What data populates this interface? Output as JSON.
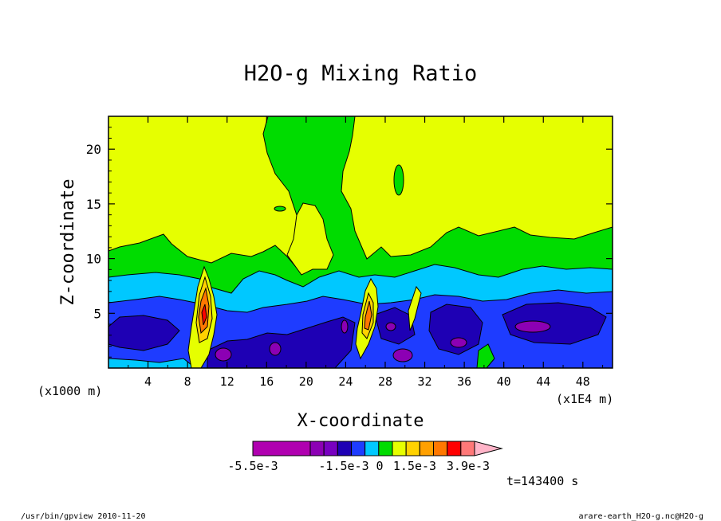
{
  "chart_data": {
    "type": "heatmap",
    "title": "H2O-g Mixing Ratio",
    "xlabel": "X-coordinate",
    "ylabel": "Z-coordinate",
    "xunit": "(x1000 m)",
    "xunit2": "(x1E4 m)",
    "xlim": [
      0,
      51
    ],
    "ylim": [
      0,
      23
    ],
    "xticks": [
      4,
      8,
      12,
      16,
      20,
      24,
      28,
      32,
      36,
      40,
      44,
      48
    ],
    "yticks": [
      5,
      10,
      15,
      20
    ],
    "grid": false,
    "colorbar": {
      "colors": [
        "#b000b0",
        "#8c00b4",
        "#7800c0",
        "#1e00b4",
        "#1e3cff",
        "#00c8ff",
        "#00dc00",
        "#e6ff00",
        "#ffd200",
        "#ffa000",
        "#ff7800",
        "#ff0000",
        "#ff7878",
        "#ffb4c8"
      ],
      "labels": [
        "-5.5e-3",
        "-1.5e-3",
        "0",
        "1.5e-3",
        "3.9e-3"
      ]
    },
    "time_label": "t=143400 s",
    "regions": [
      {
        "level": "high-layer",
        "color": "#e6ff00",
        "description": "upper domain, above ~8-11 km"
      },
      {
        "level": "mid-layer",
        "color": "#00dc00",
        "description": "band around 6-11 km, plumes to 23 km near x=15-26"
      },
      {
        "level": "cyan",
        "color": "#00c8ff",
        "description": "band around 5-8 km"
      },
      {
        "level": "blue",
        "color": "#1e3cff",
        "description": "band around 2-6 km"
      },
      {
        "level": "navy",
        "color": "#1e00b4",
        "description": "low cores around 1-5 km"
      },
      {
        "level": "purple",
        "color": "#8c00b4",
        "description": "small minima near surface"
      },
      {
        "level": "warm-plumes",
        "color": "#ff7800",
        "description": "positive anomaly towers near x=10 and x=27"
      }
    ]
  },
  "footer": {
    "left": "/usr/bin/gpview  2010-11-20",
    "right": "arare-earth_H2O-g.nc@H2O-g"
  }
}
